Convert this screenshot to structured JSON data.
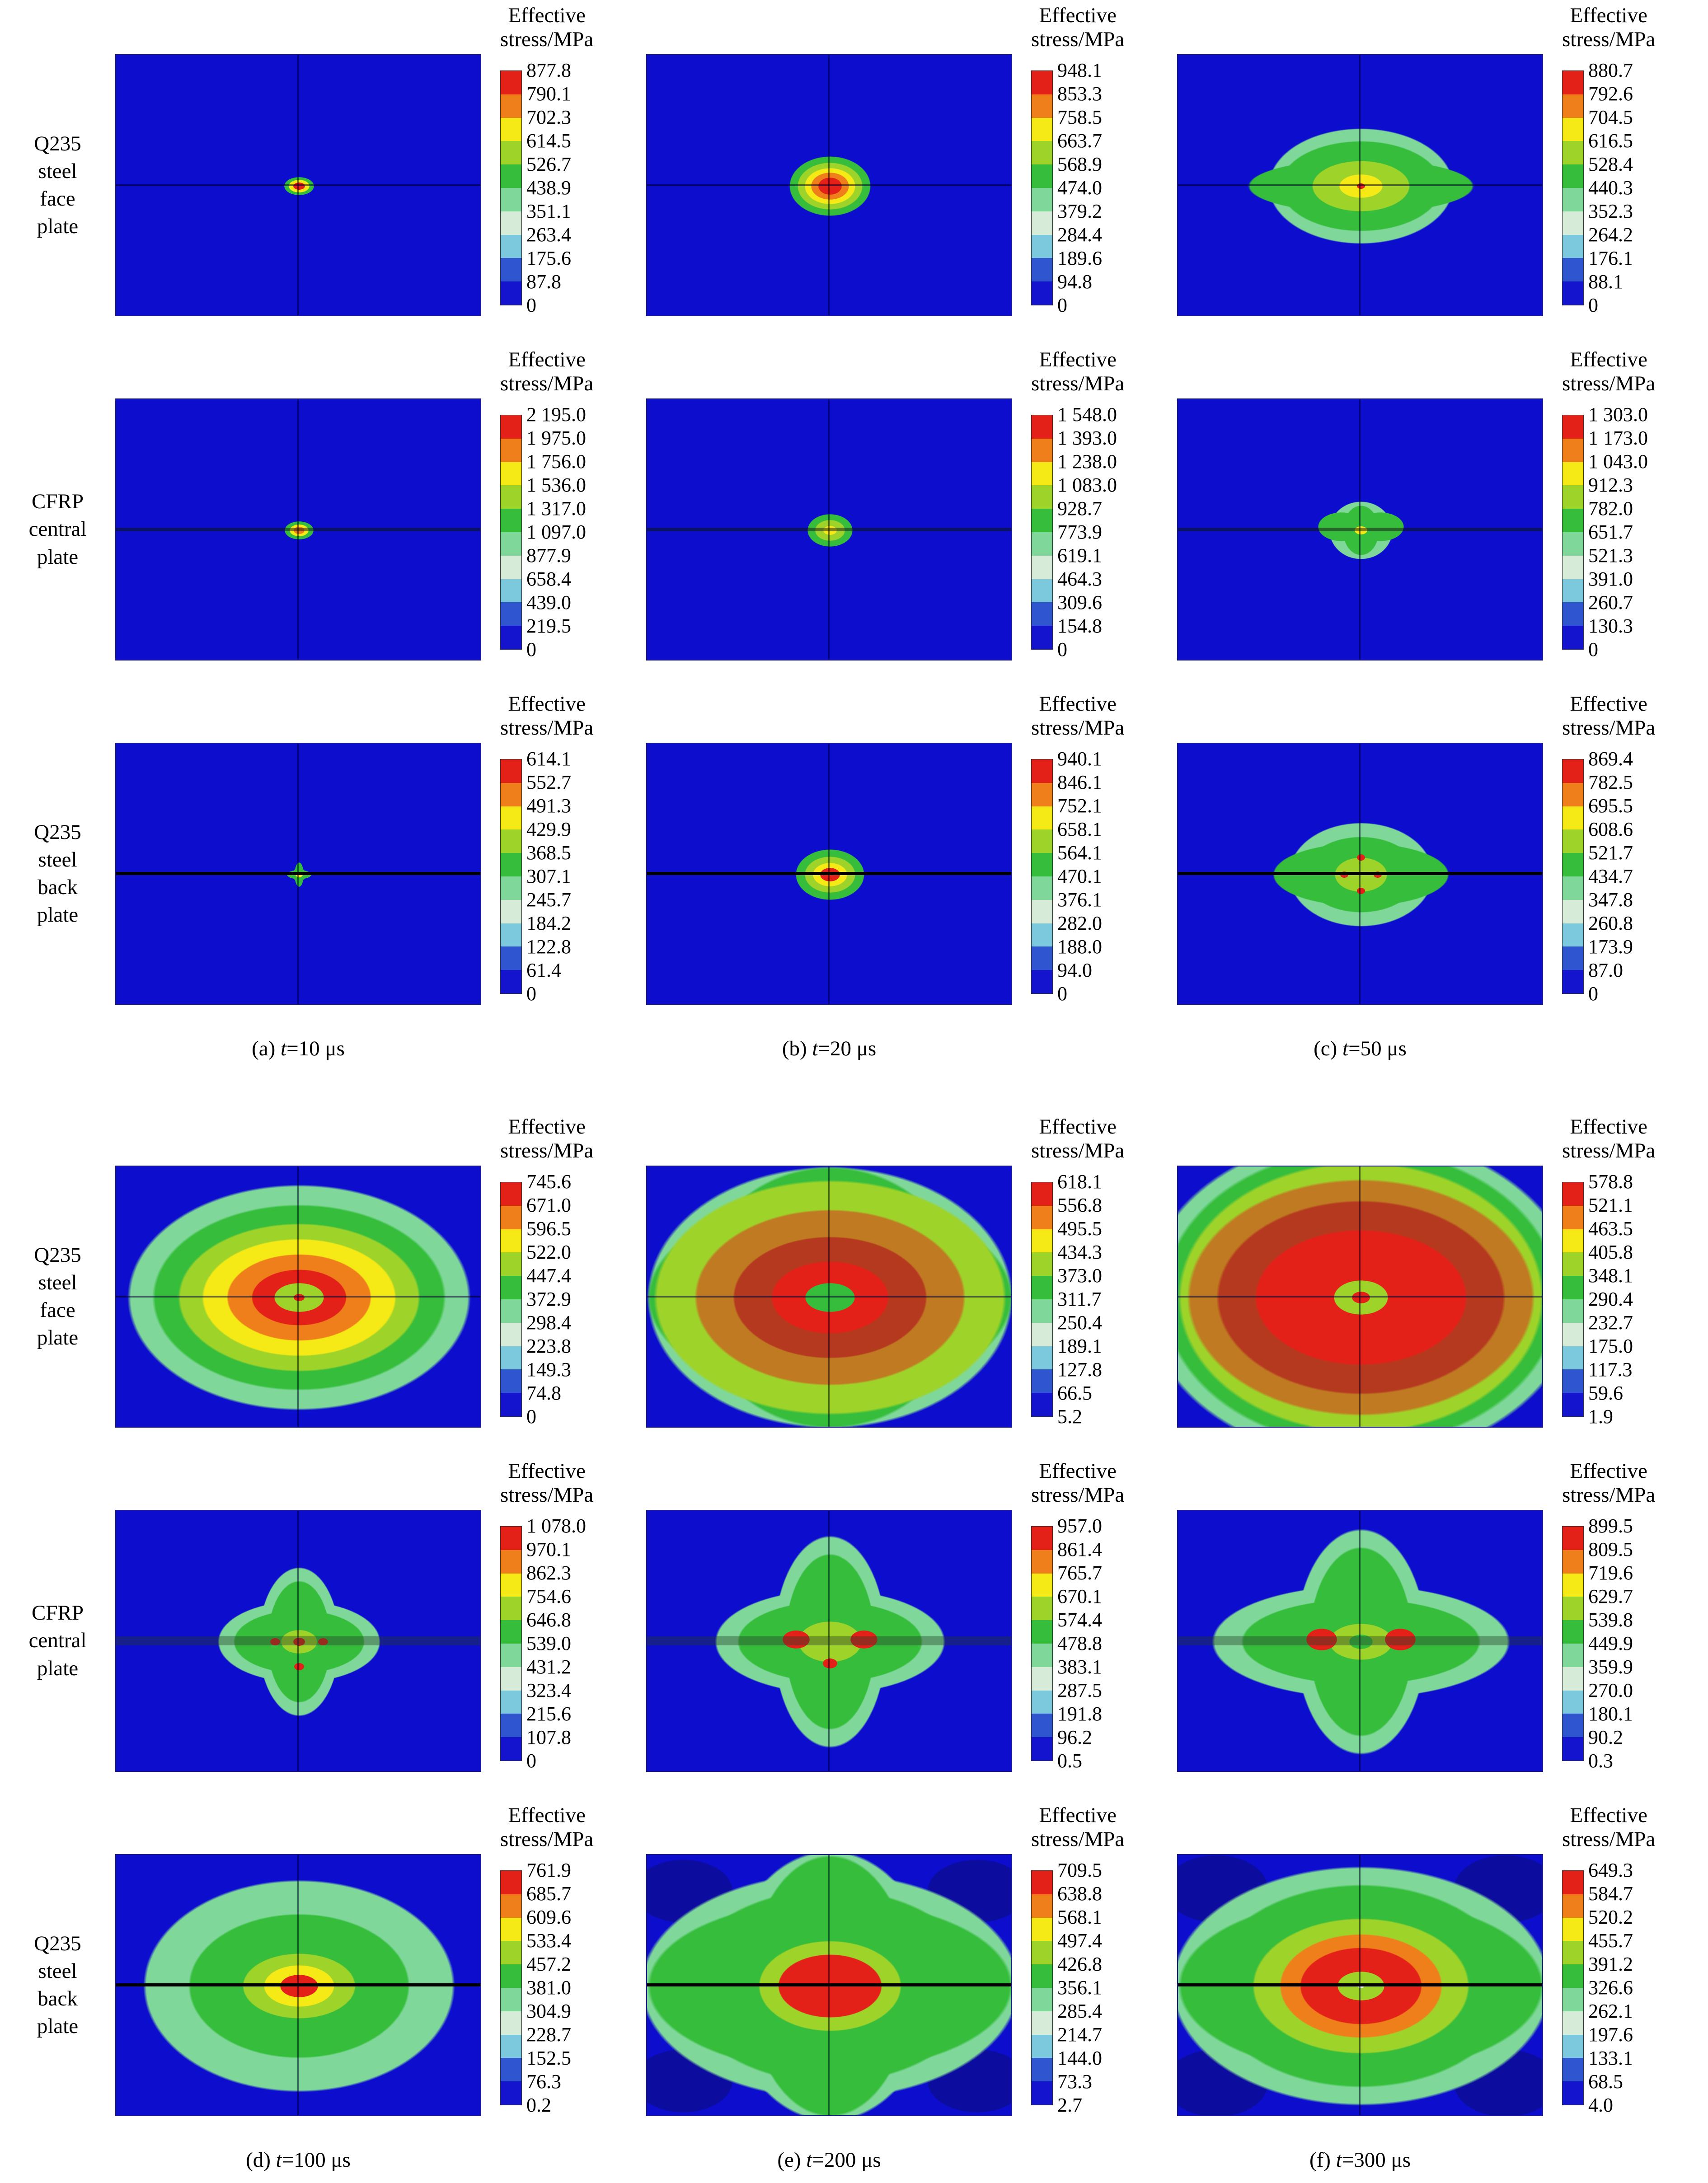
{
  "chart_data": {
    "type": "heatmap",
    "title": "",
    "colorbar_title_line1": "Effective",
    "colorbar_title_line2": "stress/MPa",
    "colorbar_position": "right",
    "plot_background": "#0d0dcd",
    "palette_top_to_bottom": [
      "#e32119",
      "#ef7f1a",
      "#f5ea16",
      "#9ed32a",
      "#36bd3c",
      "#7fd89a",
      "#d6ecd9",
      "#7cc9de",
      "#2f55cf",
      "#1414cf"
    ],
    "blocks": [
      {
        "rows": [
          {
            "plate": "face",
            "label": "Q235\nsteel\nface\nplate",
            "panels": [
              {
                "id": "a1",
                "ticks": [
                  "877.8",
                  "790.1",
                  "702.3",
                  "614.5",
                  "526.7",
                  "438.9",
                  "351.1",
                  "263.4",
                  "175.6",
                  "87.8",
                  "0"
                ]
              },
              {
                "id": "b1",
                "ticks": [
                  "948.1",
                  "853.3",
                  "758.5",
                  "663.7",
                  "568.9",
                  "474.0",
                  "379.2",
                  "284.4",
                  "189.6",
                  "94.8",
                  "0"
                ]
              },
              {
                "id": "c1",
                "ticks": [
                  "880.7",
                  "792.6",
                  "704.5",
                  "616.5",
                  "528.4",
                  "440.3",
                  "352.3",
                  "264.2",
                  "176.1",
                  "88.1",
                  "0"
                ]
              }
            ]
          },
          {
            "plate": "cfrp",
            "label": "CFRP\ncentral\nplate",
            "panels": [
              {
                "id": "a2",
                "ticks": [
                  "2 195.0",
                  "1 975.0",
                  "1 756.0",
                  "1 536.0",
                  "1 317.0",
                  "1 097.0",
                  "877.9",
                  "658.4",
                  "439.0",
                  "219.5",
                  "0"
                ]
              },
              {
                "id": "b2",
                "ticks": [
                  "1 548.0",
                  "1 393.0",
                  "1 238.0",
                  "1 083.0",
                  "928.7",
                  "773.9",
                  "619.1",
                  "464.3",
                  "309.6",
                  "154.8",
                  "0"
                ]
              },
              {
                "id": "c2",
                "ticks": [
                  "1 303.0",
                  "1 173.0",
                  "1 043.0",
                  "912.3",
                  "782.0",
                  "651.7",
                  "521.3",
                  "391.0",
                  "260.7",
                  "130.3",
                  "0"
                ]
              }
            ]
          },
          {
            "plate": "back",
            "label": "Q235\nsteel\nback\nplate",
            "panels": [
              {
                "id": "a3",
                "ticks": [
                  "614.1",
                  "552.7",
                  "491.3",
                  "429.9",
                  "368.5",
                  "307.1",
                  "245.7",
                  "184.2",
                  "122.8",
                  "61.4",
                  "0"
                ]
              },
              {
                "id": "b3",
                "ticks": [
                  "940.1",
                  "846.1",
                  "752.1",
                  "658.1",
                  "564.1",
                  "470.1",
                  "376.1",
                  "282.0",
                  "188.0",
                  "94.0",
                  "0"
                ]
              },
              {
                "id": "c3",
                "ticks": [
                  "869.4",
                  "782.5",
                  "695.5",
                  "608.6",
                  "521.7",
                  "434.7",
                  "347.8",
                  "260.8",
                  "173.9",
                  "87.0",
                  "0"
                ]
              }
            ]
          }
        ],
        "captions": [
          {
            "index": "(a)",
            "variable": "t",
            "value": "=10 μs"
          },
          {
            "index": "(b)",
            "variable": "t",
            "value": "=20 μs"
          },
          {
            "index": "(c)",
            "variable": "t",
            "value": "=50 μs"
          }
        ]
      },
      {
        "rows": [
          {
            "plate": "face",
            "label": "Q235\nsteel\nface\nplate",
            "panels": [
              {
                "id": "d1",
                "ticks": [
                  "745.6",
                  "671.0",
                  "596.5",
                  "522.0",
                  "447.4",
                  "372.9",
                  "298.4",
                  "223.8",
                  "149.3",
                  "74.8",
                  "0"
                ]
              },
              {
                "id": "e1",
                "ticks": [
                  "618.1",
                  "556.8",
                  "495.5",
                  "434.3",
                  "373.0",
                  "311.7",
                  "250.4",
                  "189.1",
                  "127.8",
                  "66.5",
                  "5.2"
                ]
              },
              {
                "id": "f1",
                "ticks": [
                  "578.8",
                  "521.1",
                  "463.5",
                  "405.8",
                  "348.1",
                  "290.4",
                  "232.7",
                  "175.0",
                  "117.3",
                  "59.6",
                  "1.9"
                ]
              }
            ]
          },
          {
            "plate": "cfrp",
            "label": "CFRP\ncentral\nplate",
            "panels": [
              {
                "id": "d2",
                "ticks": [
                  "1 078.0",
                  "970.1",
                  "862.3",
                  "754.6",
                  "646.8",
                  "539.0",
                  "431.2",
                  "323.4",
                  "215.6",
                  "107.8",
                  "0"
                ]
              },
              {
                "id": "e2",
                "ticks": [
                  "957.0",
                  "861.4",
                  "765.7",
                  "670.1",
                  "574.4",
                  "478.8",
                  "383.1",
                  "287.5",
                  "191.8",
                  "96.2",
                  "0.5"
                ]
              },
              {
                "id": "f2",
                "ticks": [
                  "899.5",
                  "809.5",
                  "719.6",
                  "629.7",
                  "539.8",
                  "449.9",
                  "359.9",
                  "270.0",
                  "180.1",
                  "90.2",
                  "0.3"
                ]
              }
            ]
          },
          {
            "plate": "back",
            "label": "Q235\nsteel\nback\nplate",
            "panels": [
              {
                "id": "d3",
                "ticks": [
                  "761.9",
                  "685.7",
                  "609.6",
                  "533.4",
                  "457.2",
                  "381.0",
                  "304.9",
                  "228.7",
                  "152.5",
                  "76.3",
                  "0.2"
                ]
              },
              {
                "id": "e3",
                "ticks": [
                  "709.5",
                  "638.8",
                  "568.1",
                  "497.4",
                  "426.8",
                  "356.1",
                  "285.4",
                  "214.7",
                  "144.0",
                  "73.3",
                  "2.7"
                ]
              },
              {
                "id": "f3",
                "ticks": [
                  "649.3",
                  "584.7",
                  "520.2",
                  "455.7",
                  "391.2",
                  "326.6",
                  "262.1",
                  "197.6",
                  "133.1",
                  "68.5",
                  "4.0"
                ]
              }
            ]
          }
        ],
        "captions": [
          {
            "index": "(d)",
            "variable": "t",
            "value": "=100 μs"
          },
          {
            "index": "(e)",
            "variable": "t",
            "value": "=200 μs"
          },
          {
            "index": "(f)",
            "variable": "t",
            "value": "=300 μs"
          }
        ]
      }
    ]
  }
}
